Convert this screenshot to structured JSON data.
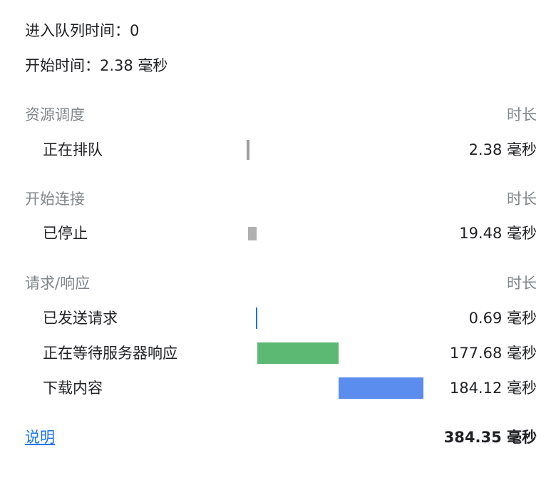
{
  "queued": {
    "label": "进入队列时间：0"
  },
  "started": {
    "label": "开始时间：2.38 毫秒"
  },
  "sections": {
    "scheduling": {
      "title": "资源调度",
      "duration_header": "时长",
      "rows": [
        {
          "label": "正在排队",
          "value": "2.38 毫秒",
          "duration_ms": 2.38,
          "color": "#9e9e9e"
        }
      ]
    },
    "connection": {
      "title": "开始连接",
      "duration_header": "时长",
      "rows": [
        {
          "label": "已停止",
          "value": "19.48 毫秒",
          "duration_ms": 19.48,
          "color": "#b0b0b0"
        }
      ]
    },
    "request": {
      "title": "请求/响应",
      "duration_header": "时长",
      "rows": [
        {
          "label": "已发送请求",
          "value": "0.69 毫秒",
          "duration_ms": 0.69,
          "color": "#1a73e8"
        },
        {
          "label": "正在等待服务器响应",
          "value": "177.68 毫秒",
          "duration_ms": 177.68,
          "color": "#5bb974"
        },
        {
          "label": "下载内容",
          "value": "184.12 毫秒",
          "duration_ms": 184.12,
          "color": "#5b8def"
        }
      ]
    }
  },
  "footer": {
    "explain_link": "说明",
    "total": "384.35 毫秒"
  }
}
